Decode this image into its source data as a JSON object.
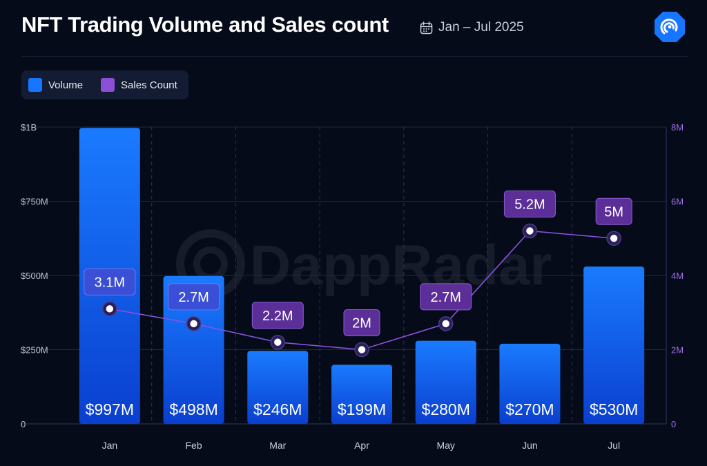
{
  "header": {
    "title": "NFT Trading Volume and Sales count",
    "date_range": "Jan – Jul 2025"
  },
  "watermark": "DappRadar",
  "colors": {
    "background": "#060b1a",
    "volume": "#1676ff",
    "sales": "#8b4fd8",
    "sales_label_bg": "#5c2f98",
    "sales_label_bg_blue": "#3a4fd6",
    "right_axis_text": "#9b6fe6",
    "left_axis_text": "#b9c0cf"
  },
  "chart_data": {
    "type": "bar",
    "categories": [
      "Jan",
      "Feb",
      "Mar",
      "Apr",
      "May",
      "Jun",
      "Jul"
    ],
    "series": [
      {
        "name": "Volume",
        "type": "bar",
        "axis": "left",
        "values": [
          997,
          498,
          246,
          199,
          280,
          270,
          530
        ],
        "labels": [
          "$997M",
          "$498M",
          "$246M",
          "$199M",
          "$280M",
          "$270M",
          "$530M"
        ]
      },
      {
        "name": "Sales Count",
        "type": "line",
        "axis": "right",
        "values": [
          3.1,
          2.7,
          2.2,
          2.0,
          2.7,
          5.2,
          5.0
        ],
        "labels": [
          "3.1M",
          "2.7M",
          "2.2M",
          "2M",
          "2.7M",
          "5.2M",
          "5M"
        ]
      }
    ],
    "left_axis": {
      "range": [
        0,
        1000
      ],
      "ticks": [
        0,
        250,
        500,
        750,
        1000
      ],
      "tick_labels": [
        "0",
        "$250M",
        "$500M",
        "$750M",
        "$1B"
      ]
    },
    "right_axis": {
      "range": [
        0,
        8
      ],
      "ticks": [
        0,
        2,
        4,
        6,
        8
      ],
      "tick_labels": [
        "0",
        "2M",
        "4M",
        "6M",
        "8M"
      ]
    },
    "grid": true,
    "legend": "top-left"
  }
}
